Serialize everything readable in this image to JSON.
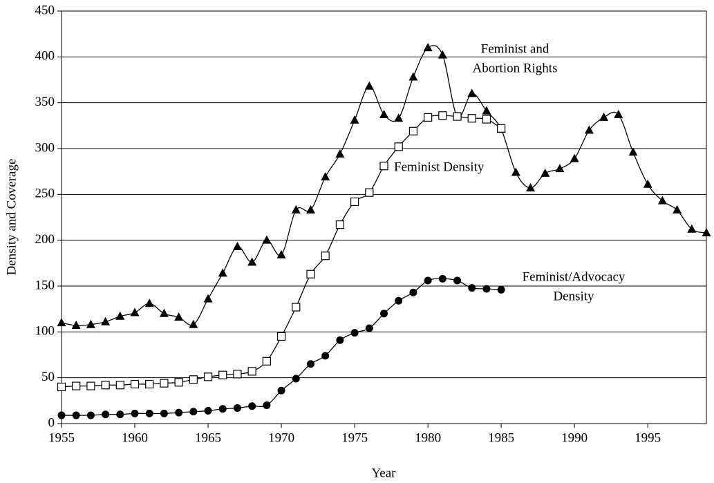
{
  "chart_data": {
    "type": "line",
    "x_label": "Year",
    "y_label": "Density and Coverage",
    "x": [
      1955,
      1956,
      1957,
      1958,
      1959,
      1960,
      1961,
      1962,
      1963,
      1964,
      1965,
      1966,
      1967,
      1968,
      1969,
      1970,
      1971,
      1972,
      1973,
      1974,
      1975,
      1976,
      1977,
      1978,
      1979,
      1980,
      1981,
      1982,
      1983,
      1984,
      1985,
      1986,
      1987,
      1988,
      1989,
      1990,
      1991,
      1992,
      1993,
      1994,
      1995,
      1996,
      1997,
      1998,
      1999
    ],
    "series": [
      {
        "marker": "triangle",
        "color": "#000000",
        "values": [
          110,
          107,
          108,
          111,
          117,
          121,
          131,
          120,
          116,
          108,
          136,
          164,
          193,
          176,
          200,
          184,
          233,
          233,
          269,
          294,
          331,
          368,
          337,
          333,
          378,
          410,
          402,
          335,
          360,
          341,
          321,
          274,
          257,
          273,
          278,
          289,
          320,
          334,
          337,
          296,
          261,
          243,
          233,
          212,
          208
        ]
      },
      {
        "marker": "square",
        "color": "#000000",
        "values": [
          40,
          41,
          41,
          42,
          42,
          43,
          43,
          44,
          45,
          48,
          51,
          53,
          54,
          57,
          68,
          95,
          127,
          163,
          183,
          217,
          242,
          252,
          281,
          302,
          319,
          334,
          336,
          335,
          333,
          332,
          322,
          null,
          null,
          null,
          null,
          null,
          null,
          null,
          null,
          null,
          null,
          null,
          null,
          null,
          null
        ]
      },
      {
        "marker": "circle",
        "color": "#000000",
        "values": [
          9,
          9,
          9,
          10,
          10,
          11,
          11,
          11,
          12,
          13,
          14,
          16,
          17,
          19,
          20,
          36,
          49,
          65,
          74,
          91,
          99,
          104,
          120,
          134,
          143,
          156,
          158,
          156,
          148,
          147,
          146,
          null,
          null,
          null,
          null,
          null,
          null,
          null,
          null,
          null,
          null,
          null,
          null,
          null,
          null
        ]
      }
    ],
    "annotations": [
      {
        "lines": [
          "Feminist and",
          "Abortion Rights"
        ]
      },
      {
        "lines": [
          "Feminist Density"
        ]
      },
      {
        "lines": [
          "Feminist/Advocacy",
          "Density"
        ]
      }
    ],
    "xlim": [
      1955,
      1999
    ],
    "xticks": [
      1955,
      1960,
      1965,
      1970,
      1975,
      1980,
      1985,
      1990,
      1995
    ],
    "ylim": [
      0,
      450
    ],
    "yticks": [
      0,
      50,
      100,
      150,
      200,
      250,
      300,
      350,
      400,
      450
    ],
    "grid": true
  }
}
